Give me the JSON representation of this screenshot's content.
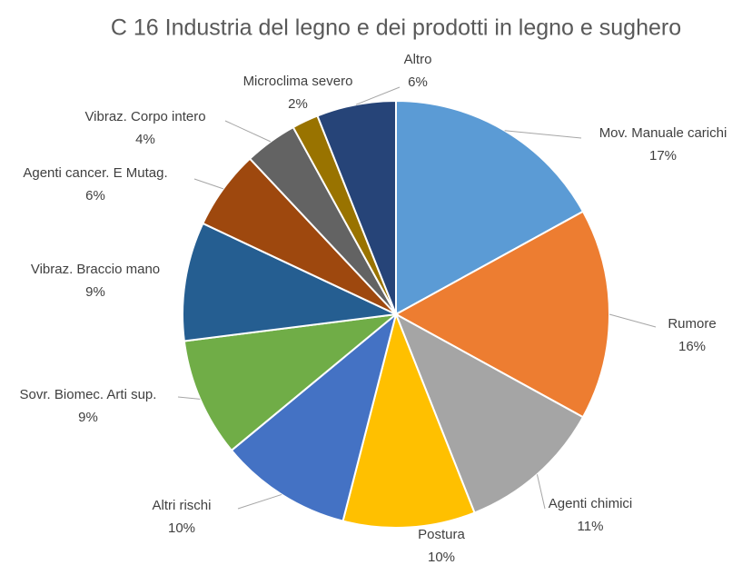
{
  "chart_data": {
    "type": "pie",
    "title": "C 16 Industria del legno e dei prodotti in legno e sughero",
    "categories": [
      "Mov. Manuale carichi",
      "Rumore",
      "Agenti chimici",
      "Postura",
      "Altri rischi",
      "Sovr. Biomec. Arti sup.",
      "Vibraz. Braccio mano",
      "Agenti cancer. E Mutag.",
      "Vibraz. Corpo intero",
      "Microclima severo",
      "Altro"
    ],
    "values": [
      17,
      16,
      11,
      10,
      10,
      9,
      9,
      6,
      4,
      2,
      6
    ],
    "value_labels": [
      "17%",
      "16%",
      "11%",
      "10%",
      "10%",
      "9%",
      "9%",
      "6%",
      "4%",
      "2%",
      "6%"
    ],
    "colors": [
      "#5b9bd5",
      "#ed7d31",
      "#a5a5a5",
      "#ffc000",
      "#4472c4",
      "#70ad47",
      "#255e91",
      "#9e480e",
      "#636363",
      "#997300",
      "#264478"
    ]
  }
}
